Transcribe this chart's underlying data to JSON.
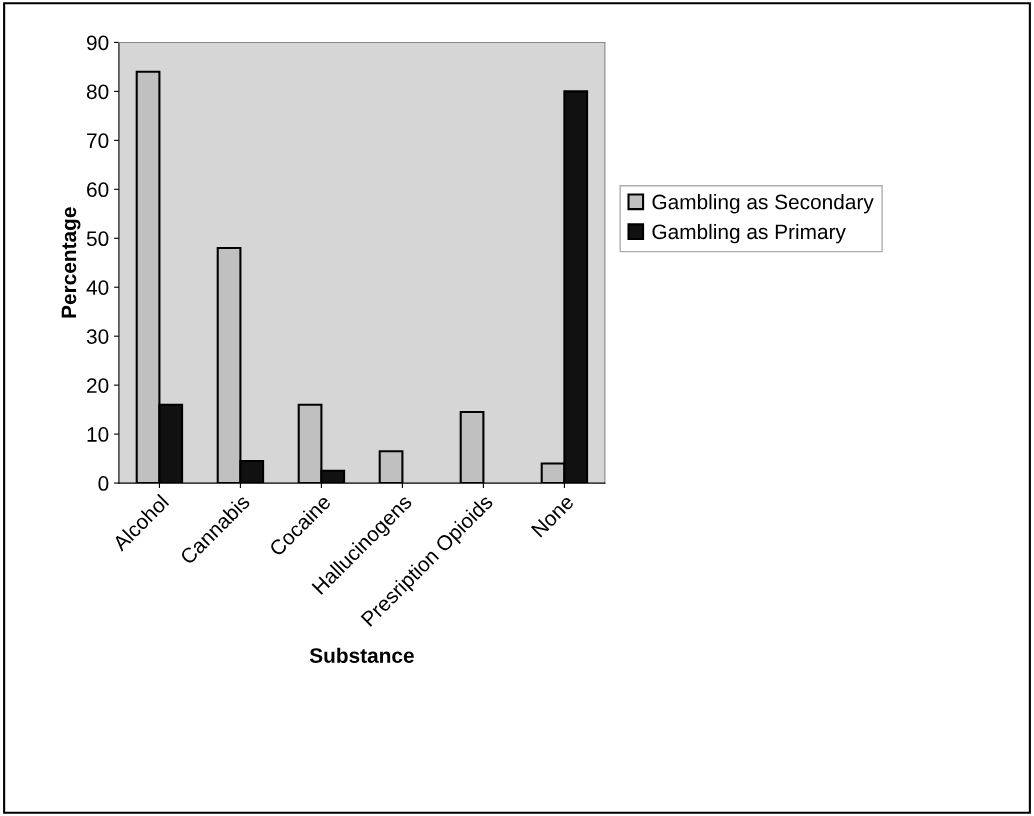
{
  "chart_data": {
    "type": "bar",
    "xlabel": "Substance",
    "ylabel": "Percentage",
    "categories": [
      "Alcohol",
      "Cannabis",
      "Cocaine",
      "Hallucinogens",
      "Presription Opioids",
      "None"
    ],
    "series": [
      {
        "name": "Gambling as Secondary",
        "color": "#c0c0c0",
        "values": [
          84,
          48,
          16,
          6.5,
          14.5,
          4
        ]
      },
      {
        "name": "Gambling as Primary",
        "color": "#111111",
        "values": [
          16,
          4.5,
          2.5,
          null,
          null,
          80
        ]
      }
    ],
    "ylim": [
      0,
      90
    ],
    "yticks": [
      0,
      10,
      20,
      30,
      40,
      50,
      60,
      70,
      80,
      90
    ],
    "grid": false,
    "legend": "right"
  }
}
